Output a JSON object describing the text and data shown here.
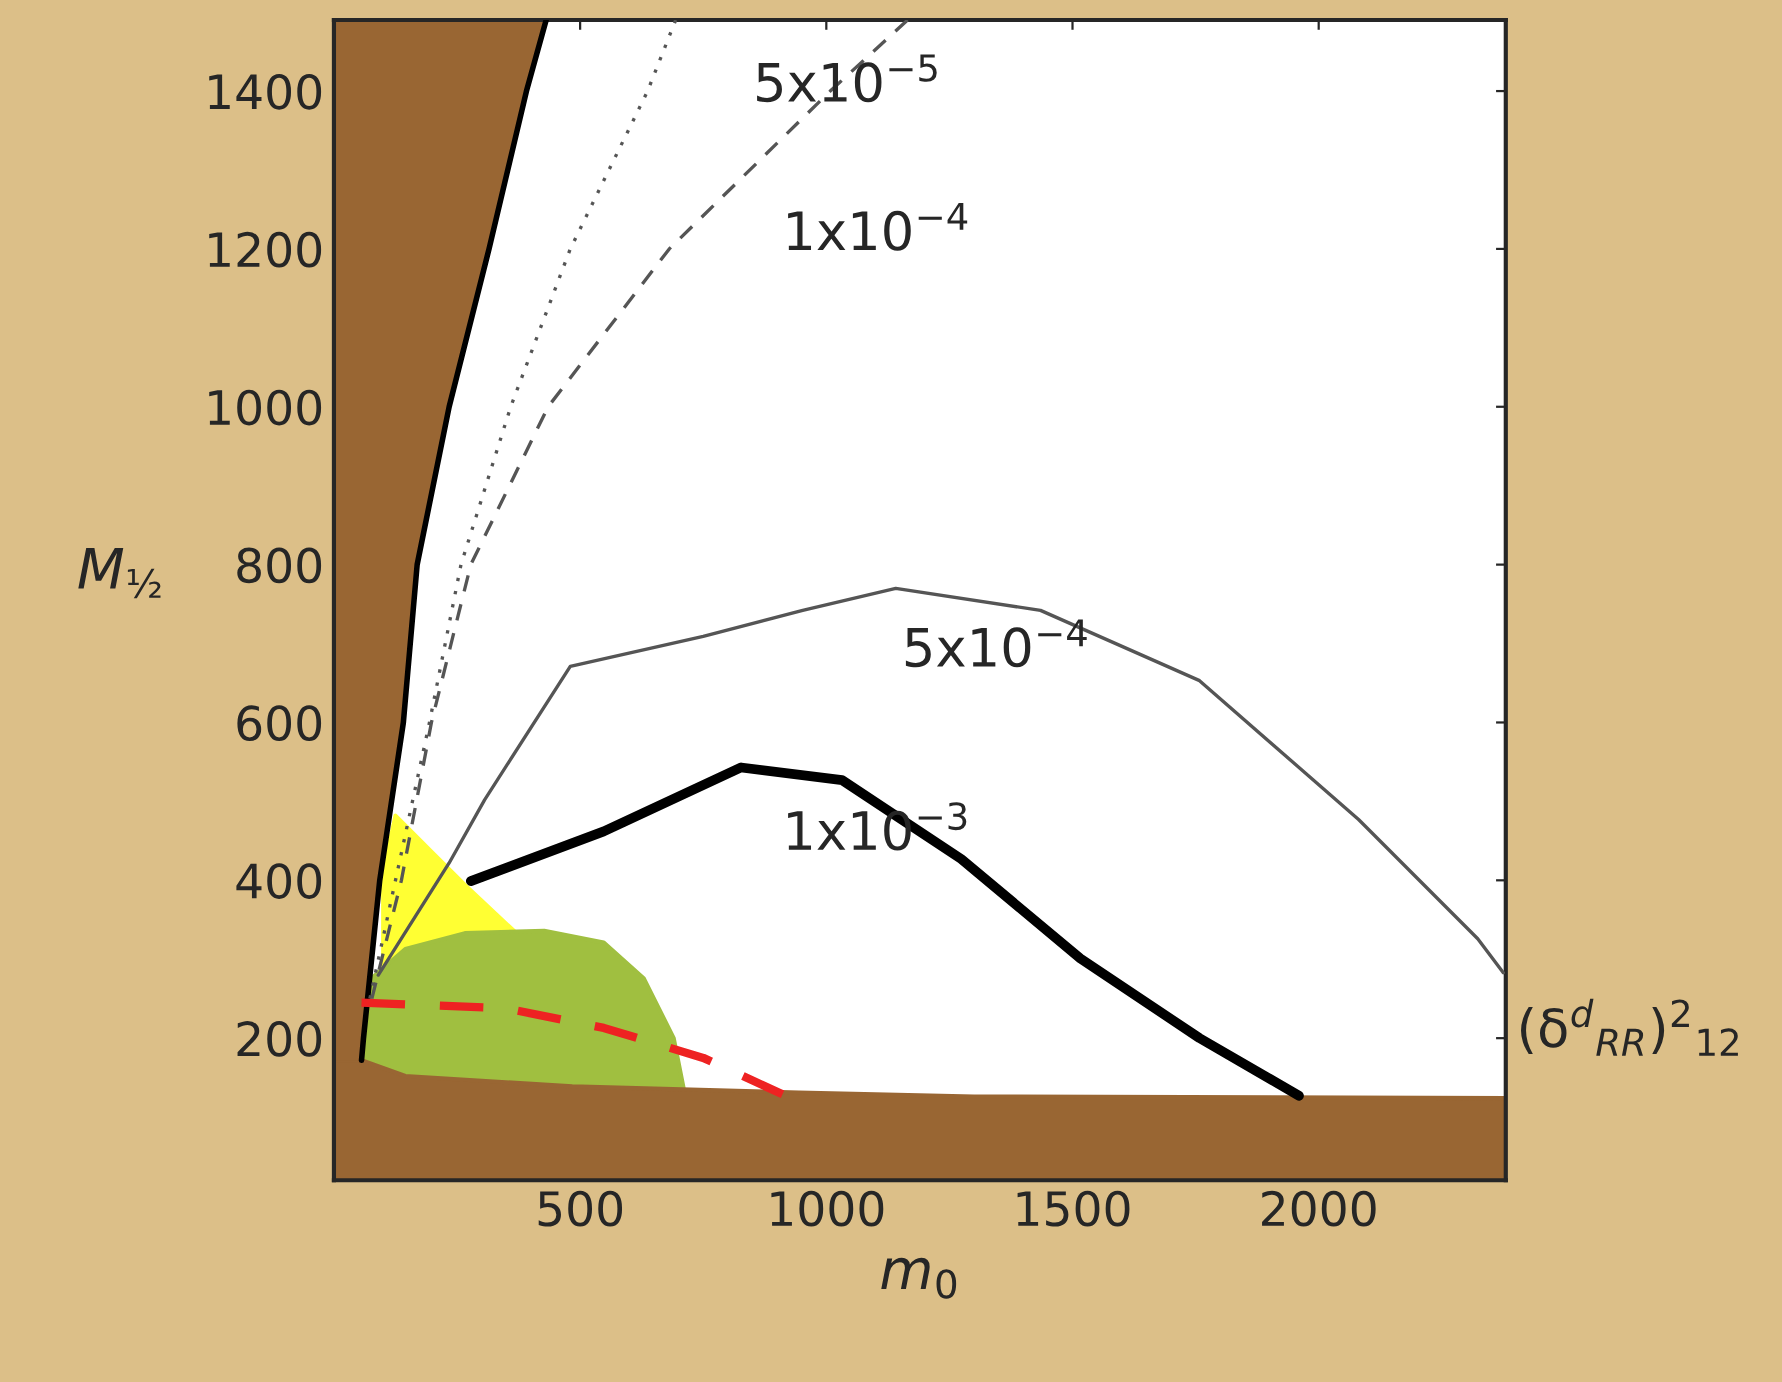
{
  "chart_data": {
    "type": "line",
    "xlabel": "m$_{0}$",
    "ylabel": "M$_{½}$",
    "xlim": [
      0,
      2380
    ],
    "ylim": [
      20,
      1490
    ],
    "xticks": [
      500,
      1000,
      1500,
      2000
    ],
    "yticks": [
      200,
      400,
      600,
      800,
      1000,
      1200,
      1400
    ],
    "grid": false,
    "legend": false,
    "series": [
      {
        "type": "area",
        "color": "#ffff33",
        "x": [
          100,
          125,
          200,
          266,
          367
        ],
        "values": [
          410,
          482,
          435,
          394,
          335
        ]
      },
      {
        "type": "area",
        "color": "#a0bf40",
        "x": [
          56,
          77,
          145,
          266,
          427,
          548,
          629,
          690,
          710
        ],
        "values": [
          172,
          276,
          313,
          333,
          336,
          321,
          276,
          200,
          137
        ]
      },
      {
        "type": "area",
        "color": "#996633",
        "x": [
          0,
          56,
          145,
          484,
          944,
          1300,
          2380
        ],
        "values": [
          172,
          172,
          152,
          139,
          131,
          126,
          124
        ]
      },
      {
        "color": "#000000",
        "line_style": "solid",
        "x": [
          56,
          60,
          93,
          141,
          169,
          234,
          315,
          391,
          431
        ],
        "values": [
          172,
          200,
          400,
          600,
          800,
          1000,
          1200,
          1400,
          1490
        ]
      },
      {
        "color": "#555555",
        "line_style": "dotted",
        "x": [
          73,
          125,
          194,
          258,
          359,
          480,
          637,
          694
        ],
        "values": [
          250,
          400,
          600,
          800,
          1000,
          1200,
          1400,
          1490
        ]
      },
      {
        "color": "#555555",
        "line_style": "dashed",
        "x": [
          77,
          137,
          198,
          278,
          435,
          681,
          1008,
          1165
        ],
        "values": [
          250,
          400,
          600,
          800,
          1000,
          1200,
          1400,
          1490
        ]
      },
      {
        "color": "#555555",
        "line_style": "solid",
        "x": [
          90,
          234,
          306,
          480,
          750,
          952,
          1141,
          1435,
          1758,
          2081,
          2323,
          2375
        ],
        "values": [
          280,
          422,
          502,
          671,
          709,
          742,
          770,
          742,
          653,
          477,
          326,
          283
        ]
      },
      {
        "color": "#000000",
        "line_style": "solid",
        "x": [
          278,
          548,
          827,
          1032,
          1274,
          1516,
          1758,
          1960
        ],
        "values": [
          399,
          462,
          543,
          527,
          427,
          301,
          200,
          127
        ]
      },
      {
        "color": "#ee2222",
        "line_style": "dashed",
        "x": [
          56,
          347,
          548,
          750,
          911
        ],
        "values": [
          245,
          238,
          213,
          175,
          129
        ]
      }
    ],
    "annotations": [
      "5x10$^{−5}$",
      "1x10$^{−4}$",
      "5x10$^{−4}$",
      "1x10$^{−3}$",
      "(δ$^{d}$$_{RR}$)$^{2}$$_{12}$"
    ]
  }
}
